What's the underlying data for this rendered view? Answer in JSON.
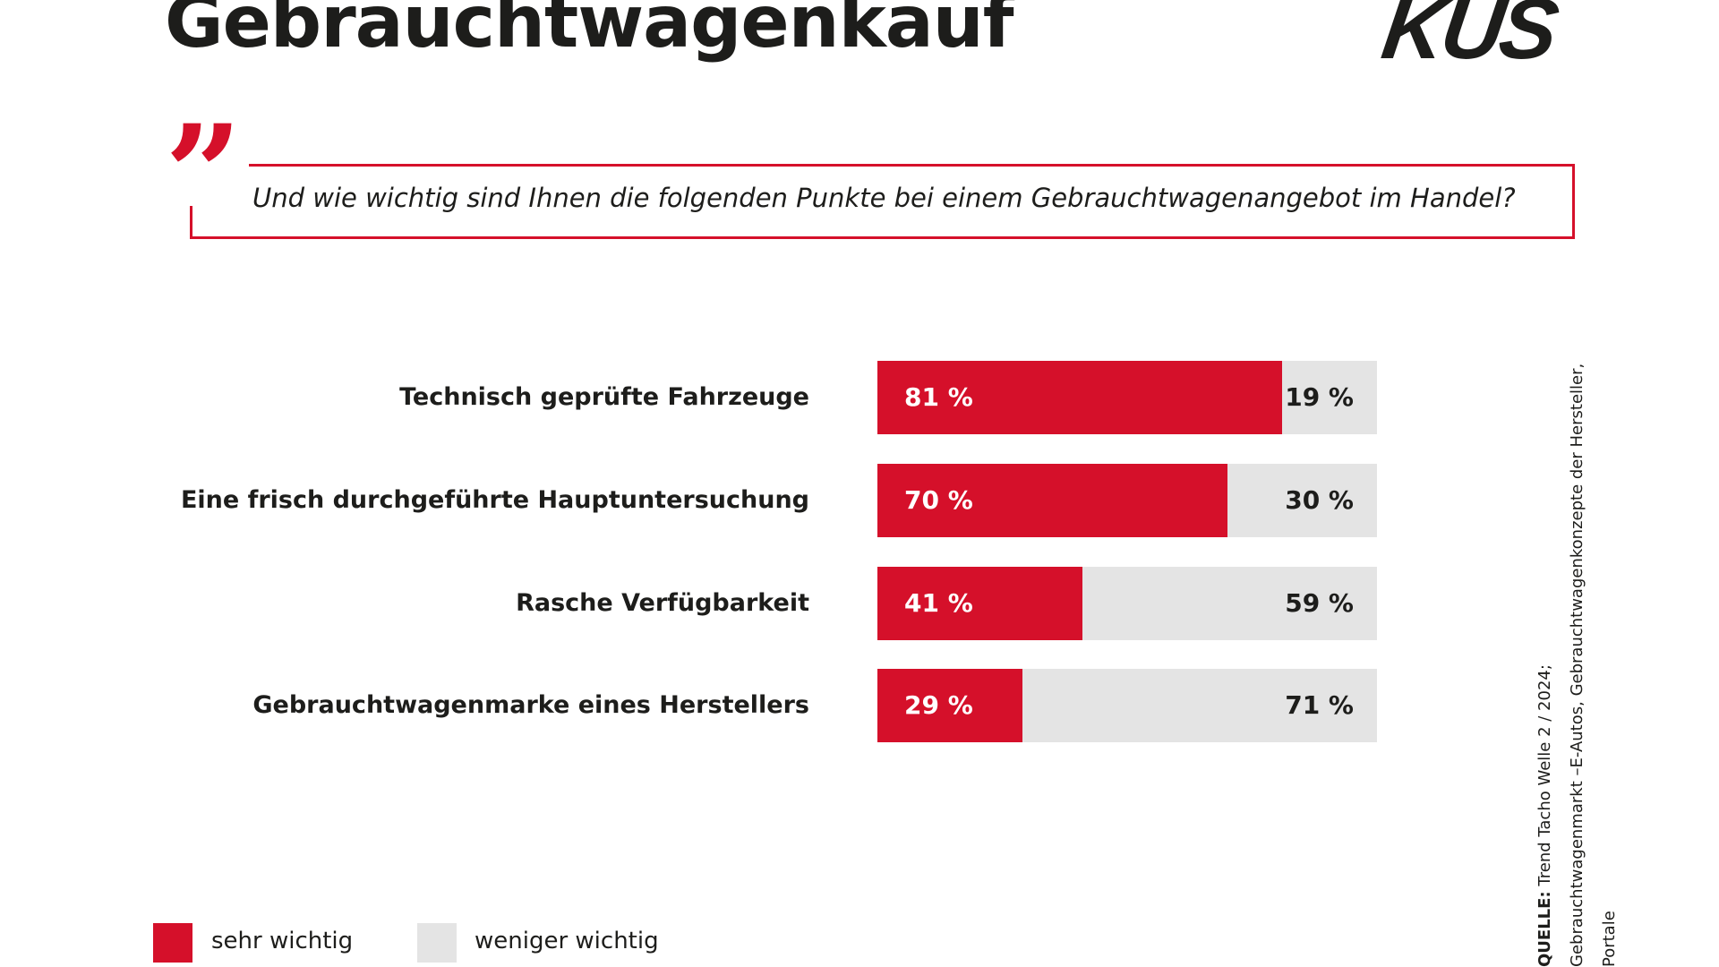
{
  "title": "Gebrauchtwagenkauf",
  "logo": "KÜS",
  "question": "Und wie wichtig sind Ihnen die folgenden Punkte bei einem Gebrauchtwagenangebot im Handel?",
  "chart_data": {
    "type": "bar",
    "orientation": "horizontal-stacked",
    "categories": [
      "Technisch geprüfte Fahrzeuge",
      "Eine frisch durchgeführte Hauptuntersuchung",
      "Rasche Verfügbarkeit",
      "Gebrauchtwagenmarke eines Herstellers"
    ],
    "series": [
      {
        "name": "sehr wichtig",
        "color": "#d5102a",
        "values": [
          81,
          70,
          41,
          29
        ],
        "labels": [
          "81 %",
          "70 %",
          "41 %",
          "29 %"
        ]
      },
      {
        "name": "weniger wichtig",
        "color": "#e4e4e4",
        "values": [
          19,
          30,
          59,
          71
        ],
        "labels": [
          "19 %",
          "30 %",
          "59 %",
          "71 %"
        ]
      }
    ],
    "xlim": [
      0,
      100
    ]
  },
  "source": {
    "label": "QUELLE:",
    "line1": "Trend Tacho Welle 2 / 2024;",
    "line2": "Gebrauchtwagenmarkt –E-Autos, Gebrauchtwagenkonzepte der Hersteller, Portale"
  }
}
